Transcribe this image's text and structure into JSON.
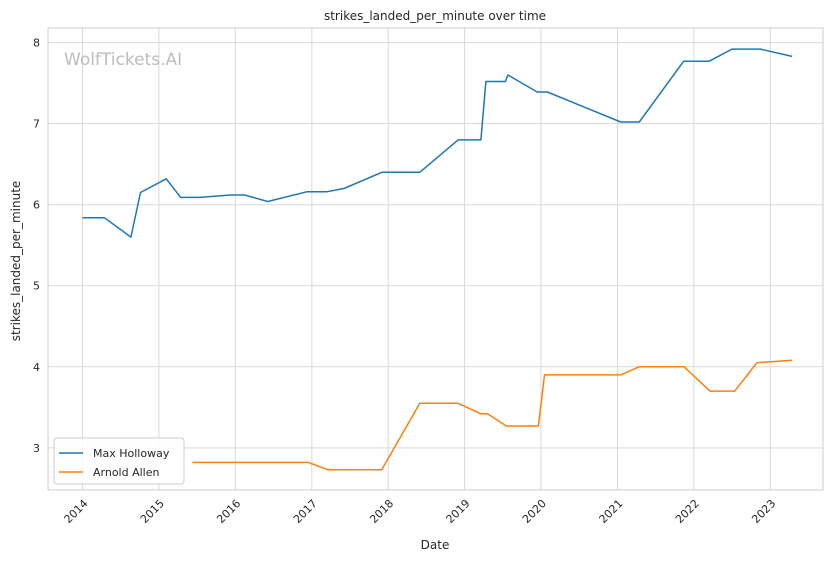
{
  "chart_data": {
    "type": "line",
    "title": "strikes_landed_per_minute over time",
    "xlabel": "Date",
    "ylabel": "strikes_landed_per_minute",
    "watermark": "WolfTickets.AI",
    "xlim": [
      "2013-07-20",
      "2023-09-10"
    ],
    "ylim": [
      2.48,
      8.18
    ],
    "x_ticks": [
      "2014",
      "2015",
      "2016",
      "2017",
      "2018",
      "2019",
      "2020",
      "2021",
      "2022",
      "2023"
    ],
    "y_ticks": [
      3,
      4,
      5,
      6,
      7,
      8
    ],
    "grid": true,
    "legend_position": "lower-left",
    "series": [
      {
        "name": "Max Holloway",
        "color": "#1f77b4",
        "points": [
          [
            "2014-01-01",
            5.84
          ],
          [
            "2014-04-15",
            5.84
          ],
          [
            "2014-08-20",
            5.6
          ],
          [
            "2014-10-05",
            6.15
          ],
          [
            "2015-02-05",
            6.32
          ],
          [
            "2015-04-15",
            6.09
          ],
          [
            "2015-07-15",
            6.09
          ],
          [
            "2015-12-10",
            6.12
          ],
          [
            "2016-02-15",
            6.12
          ],
          [
            "2016-06-04",
            6.04
          ],
          [
            "2016-12-10",
            6.16
          ],
          [
            "2017-03-15",
            6.16
          ],
          [
            "2017-06-03",
            6.2
          ],
          [
            "2017-12-02",
            6.4
          ],
          [
            "2018-06-01",
            6.4
          ],
          [
            "2018-12-01",
            6.8
          ],
          [
            "2019-03-20",
            6.8
          ],
          [
            "2019-04-13",
            7.52
          ],
          [
            "2019-07-15",
            7.52
          ],
          [
            "2019-07-27",
            7.6
          ],
          [
            "2019-12-14",
            7.39
          ],
          [
            "2020-02-01",
            7.39
          ],
          [
            "2020-07-11",
            7.22
          ],
          [
            "2021-01-16",
            7.02
          ],
          [
            "2021-04-15",
            7.02
          ],
          [
            "2021-11-13",
            7.77
          ],
          [
            "2022-03-15",
            7.77
          ],
          [
            "2022-07-02",
            7.92
          ],
          [
            "2022-11-15",
            7.92
          ],
          [
            "2023-04-15",
            7.83
          ]
        ]
      },
      {
        "name": "Arnold Allen",
        "color": "#ff7f0e",
        "points": [
          [
            "2015-06-10",
            2.82
          ],
          [
            "2016-12-15",
            2.82
          ],
          [
            "2017-03-18",
            2.73
          ],
          [
            "2017-12-01",
            2.73
          ],
          [
            "2018-06-01",
            3.55
          ],
          [
            "2018-12-01",
            3.55
          ],
          [
            "2019-03-20",
            3.42
          ],
          [
            "2019-04-20",
            3.42
          ],
          [
            "2019-07-20",
            3.27
          ],
          [
            "2019-12-20",
            3.27
          ],
          [
            "2020-01-18",
            3.9
          ],
          [
            "2021-01-15",
            3.9
          ],
          [
            "2021-04-15",
            4.0
          ],
          [
            "2021-11-15",
            4.0
          ],
          [
            "2022-03-19",
            3.7
          ],
          [
            "2022-07-15",
            3.7
          ],
          [
            "2022-10-29",
            4.05
          ],
          [
            "2023-04-15",
            4.08
          ]
        ]
      }
    ]
  }
}
